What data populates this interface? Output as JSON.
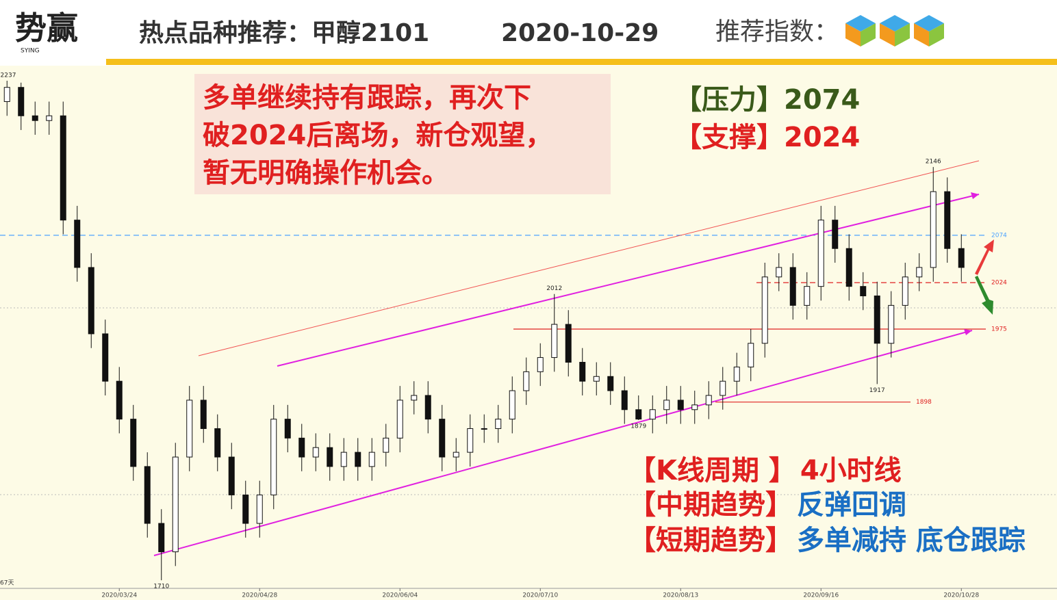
{
  "header": {
    "logo": "势赢",
    "logo_sub": "SYING",
    "title": "热点品种推荐：甲醇2101",
    "date": "2020-10-29",
    "rating_label": "推荐指数："
  },
  "advice": [
    "多单继续持有跟踪，再次下",
    "破2024后离场，新仓观望，",
    "暂无明确操作机会。"
  ],
  "key_levels": {
    "resistance": "【压力】2074",
    "support": "【支撑】2024"
  },
  "summary": [
    {
      "label": "【K线周期 】",
      "value": "4小时线"
    },
    {
      "label": "【中期趋势】",
      "value": "反弹回调"
    },
    {
      "label": "【短期趋势】",
      "value": "多单减持 底仓跟踪"
    }
  ],
  "chart_data": {
    "type": "candlestick",
    "categories": [
      null,
      null,
      null,
      null,
      null,
      null,
      null,
      null,
      "2020/03/24",
      null,
      null,
      null,
      null,
      null,
      null,
      null,
      null,
      null,
      "2020/04/28",
      null,
      null,
      null,
      null,
      null,
      null,
      null,
      null,
      null,
      "2020/06/04",
      null,
      null,
      null,
      null,
      null,
      null,
      null,
      null,
      null,
      "2020/07/10",
      null,
      null,
      null,
      null,
      null,
      null,
      null,
      null,
      null,
      "2020/08/13",
      null,
      null,
      null,
      null,
      null,
      null,
      null,
      null,
      null,
      "2020/09/16",
      null,
      null,
      null,
      null,
      null,
      null,
      null,
      null,
      null,
      "2020/10/28"
    ],
    "open": [
      2215,
      2230,
      2200,
      2195,
      2200,
      2090,
      2040,
      1970,
      1920,
      1880,
      1830,
      1770,
      1740,
      1840,
      1900,
      1870,
      1840,
      1800,
      1770,
      1800,
      1880,
      1860,
      1840,
      1850,
      1830,
      1845,
      1830,
      1845,
      1860,
      1900,
      1905,
      1880,
      1840,
      1845,
      1870,
      1870,
      1880,
      1910,
      1930,
      1945,
      1980,
      1940,
      1920,
      1925,
      1910,
      1890,
      1880,
      1890,
      1900,
      1890,
      1895,
      1905,
      1920,
      1935,
      1960,
      2030,
      2040,
      2000,
      2020,
      2090,
      2060,
      2020,
      2010,
      1960,
      2000,
      2030,
      2040,
      2120,
      2060
    ],
    "high": [
      2237,
      2235,
      2215,
      2215,
      2215,
      2105,
      2055,
      1985,
      1935,
      1895,
      1845,
      1785,
      1855,
      1915,
      1915,
      1885,
      1855,
      1815,
      1815,
      1895,
      1895,
      1875,
      1865,
      1865,
      1860,
      1860,
      1860,
      1875,
      1915,
      1920,
      1920,
      1895,
      1860,
      1885,
      1885,
      1895,
      1925,
      1945,
      1960,
      2012,
      1995,
      1955,
      1940,
      1940,
      1925,
      1905,
      1905,
      1915,
      1915,
      1910,
      1920,
      1935,
      1950,
      1975,
      2045,
      2055,
      2055,
      2035,
      2105,
      2105,
      2075,
      2035,
      2025,
      2015,
      2045,
      2055,
      2146,
      2135,
      2075
    ],
    "low": [
      2200,
      2185,
      2180,
      2180,
      2075,
      2025,
      1955,
      1905,
      1865,
      1815,
      1755,
      1710,
      1725,
      1825,
      1855,
      1825,
      1785,
      1755,
      1755,
      1785,
      1845,
      1825,
      1825,
      1815,
      1815,
      1815,
      1815,
      1830,
      1845,
      1885,
      1865,
      1825,
      1825,
      1830,
      1855,
      1855,
      1865,
      1895,
      1915,
      1930,
      1925,
      1905,
      1905,
      1895,
      1875,
      1879,
      1865,
      1875,
      1875,
      1875,
      1880,
      1890,
      1905,
      1920,
      1945,
      2015,
      1985,
      1985,
      2005,
      2045,
      2005,
      1995,
      1917,
      1945,
      1985,
      2015,
      2025,
      2045,
      2025
    ],
    "close": [
      2230,
      2200,
      2195,
      2200,
      2090,
      2040,
      1970,
      1920,
      1880,
      1830,
      1770,
      1740,
      1840,
      1900,
      1870,
      1840,
      1800,
      1770,
      1800,
      1880,
      1860,
      1840,
      1850,
      1830,
      1845,
      1830,
      1845,
      1860,
      1900,
      1905,
      1880,
      1840,
      1845,
      1870,
      1870,
      1880,
      1910,
      1930,
      1945,
      1980,
      1940,
      1920,
      1925,
      1910,
      1890,
      1880,
      1890,
      1900,
      1890,
      1895,
      1905,
      1920,
      1935,
      1960,
      2030,
      2040,
      2000,
      2020,
      2090,
      2060,
      2020,
      2010,
      1960,
      2000,
      2030,
      2040,
      2120,
      2060,
      2040
    ],
    "ylim": [
      1700,
      2250
    ],
    "levels": [
      {
        "value": 2074,
        "color": "#4da3ff",
        "dashed": true
      },
      {
        "value": 2024,
        "color": "#e02020",
        "dashed": true
      },
      {
        "value": 1975,
        "color": "#e02020",
        "dashed": false
      },
      {
        "value": 1898,
        "color": "#e02020",
        "dashed": false
      }
    ],
    "extremes": [
      2237,
      2012,
      2146,
      1710,
      1879,
      1917
    ],
    "footnote": "67天",
    "up_color": "#ffffff",
    "down_color": "#111111"
  }
}
